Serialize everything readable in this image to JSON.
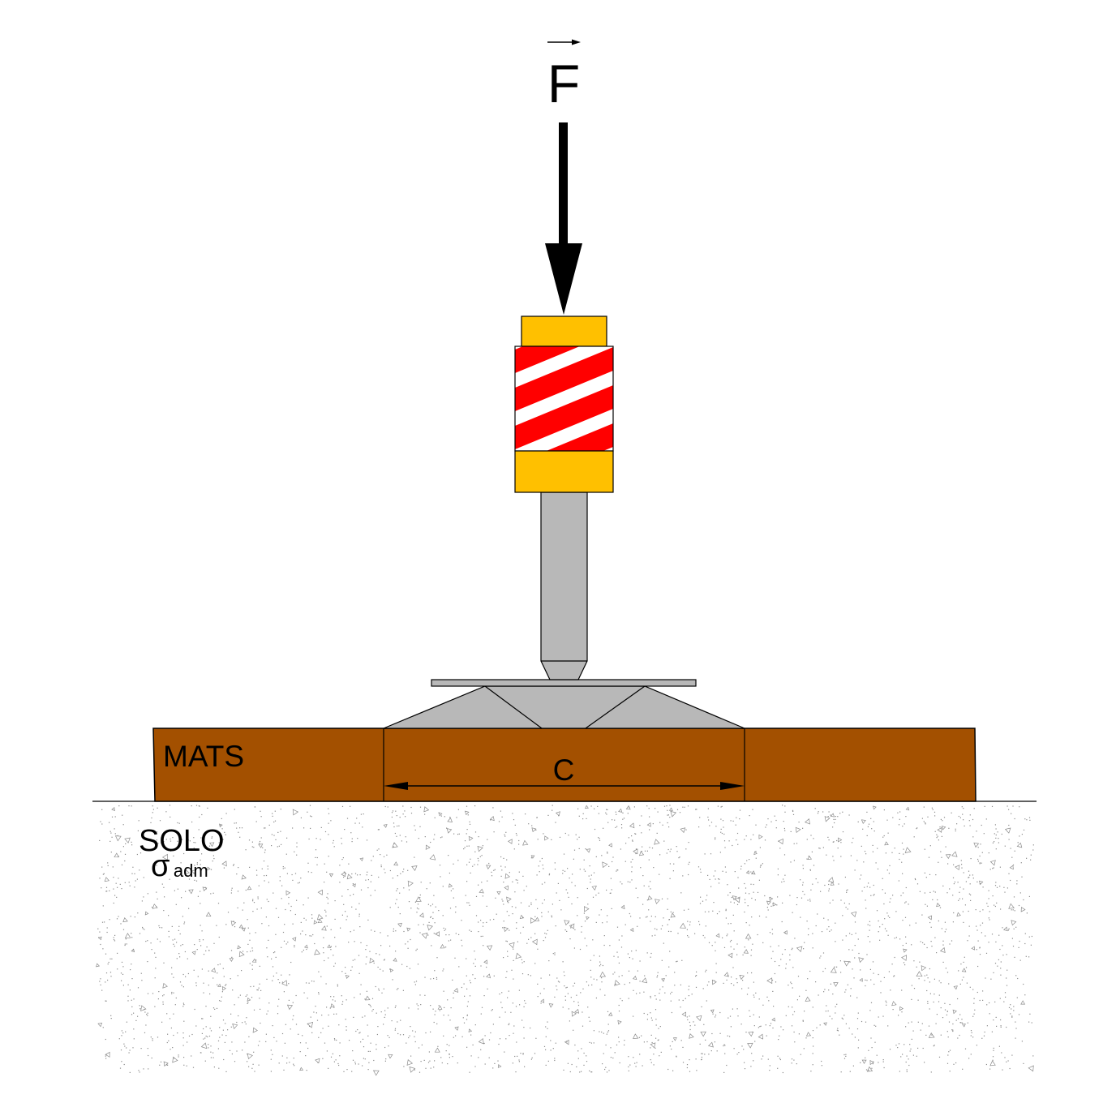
{
  "force_label": "F",
  "mats_label": "MATS",
  "dimension_label": "C",
  "soil_label": "SOLO",
  "stress_symbol": "σ",
  "stress_subscript": "adm",
  "colors": {
    "mats": "#A35000",
    "pad_yellow": "#FFC000",
    "stripe_red": "#FF0000",
    "steel_gray": "#B8B8B8",
    "soil_dots": "#8C8C8C",
    "outline": "#000000"
  },
  "icons": [
    "force-arrow-icon",
    "vector-arrow-icon",
    "dimension-arrow-icon"
  ]
}
